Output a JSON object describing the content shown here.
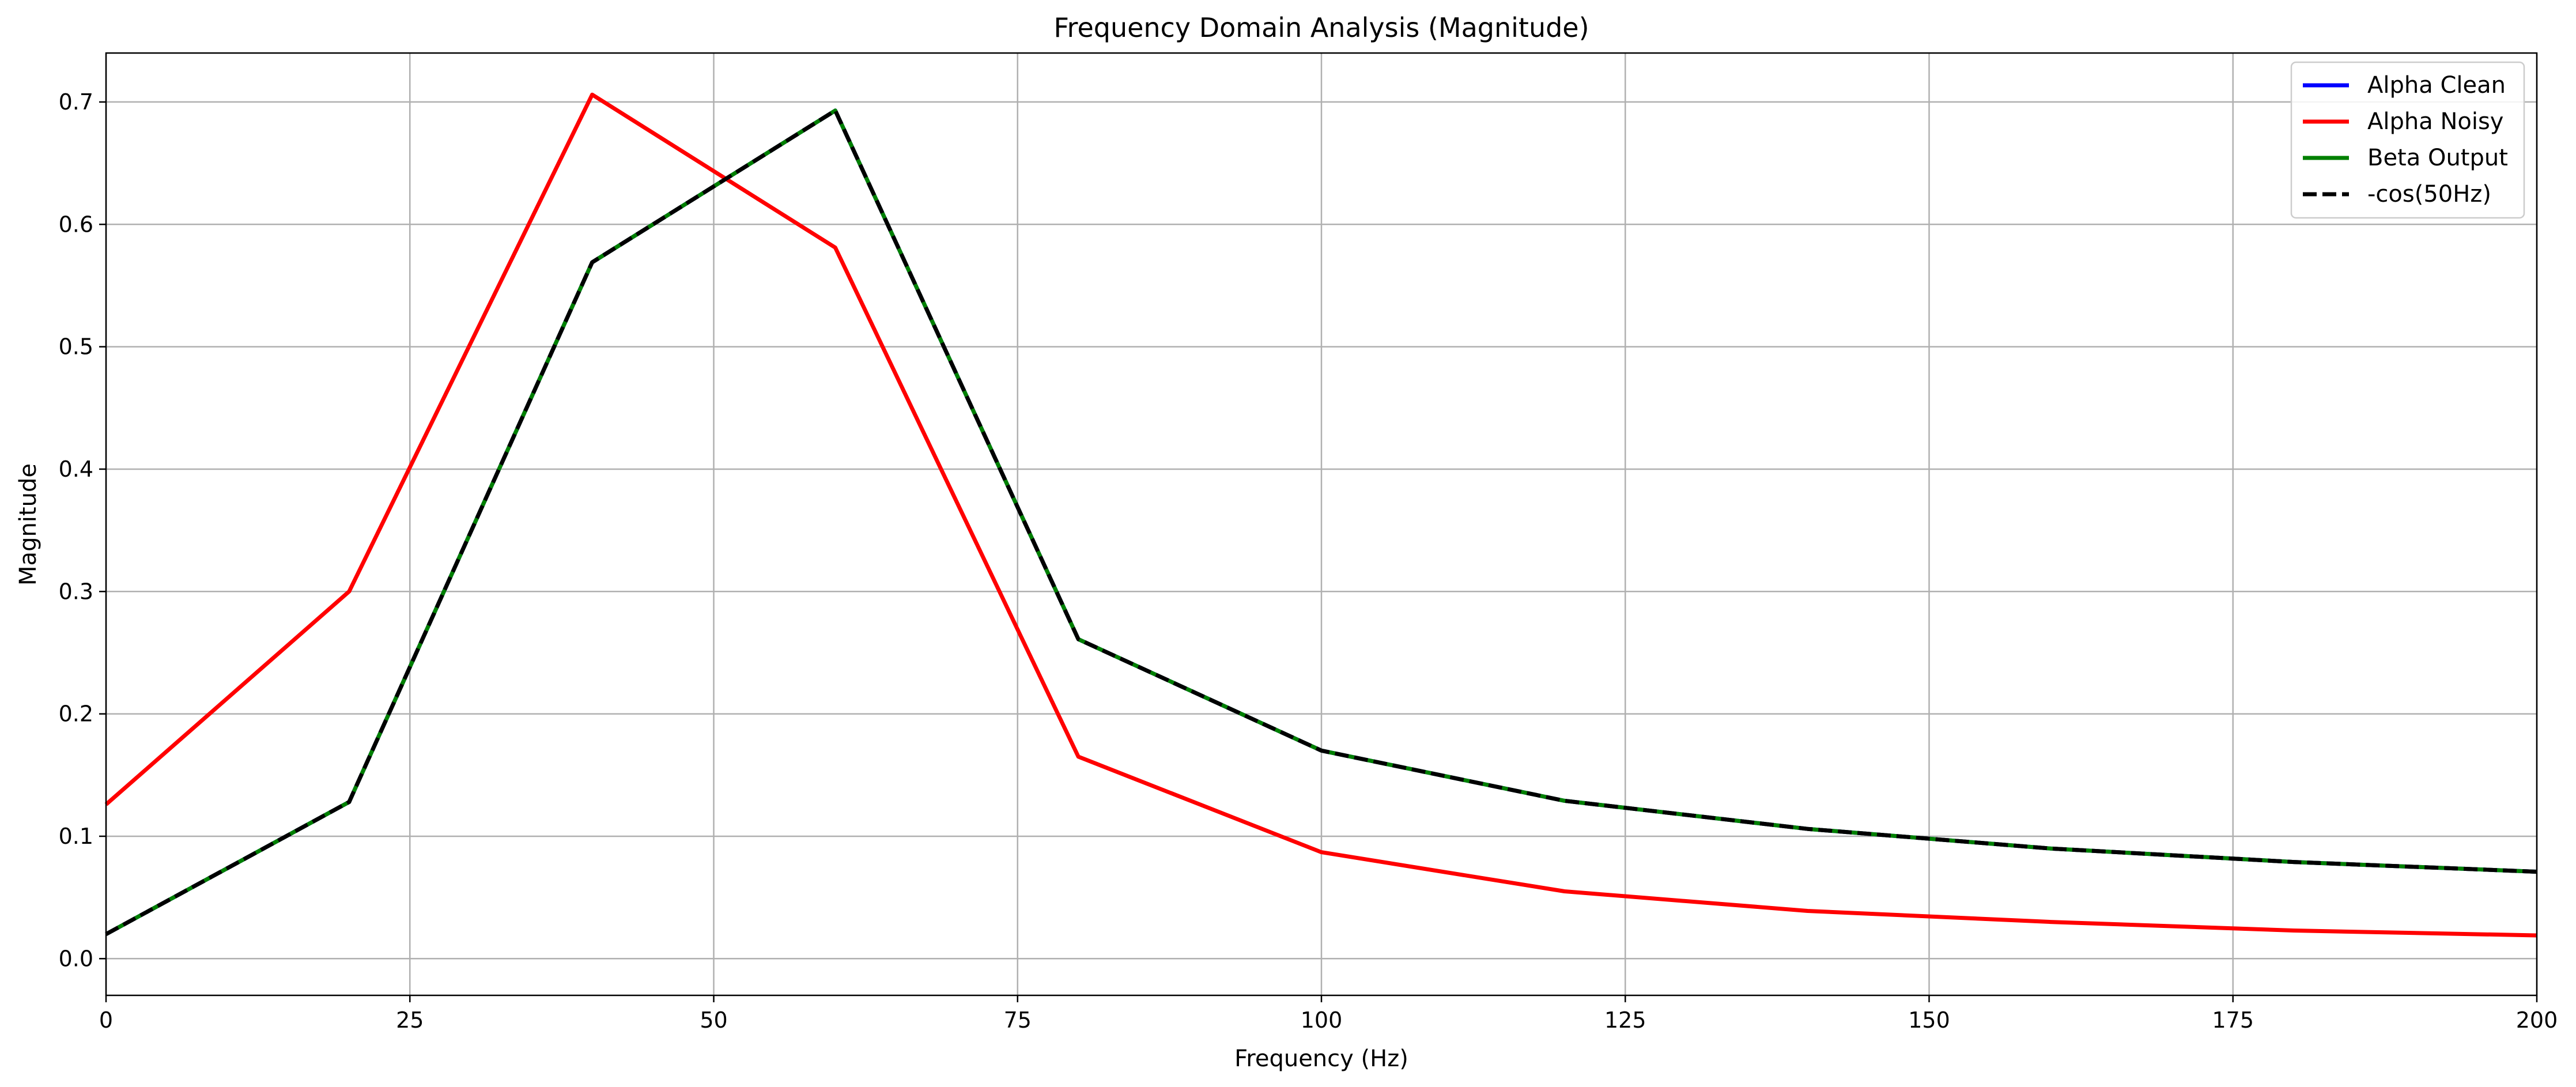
{
  "chart_data": {
    "type": "line",
    "title": "Frequency Domain Analysis (Magnitude)",
    "xlabel": "Frequency (Hz)",
    "ylabel": "Magnitude",
    "xlim": [
      0,
      200
    ],
    "ylim": [
      -0.03,
      0.74
    ],
    "xticks": [
      0,
      25,
      50,
      75,
      100,
      125,
      150,
      175,
      200
    ],
    "xtick_labels": [
      "0",
      "25",
      "50",
      "75",
      "100",
      "125",
      "150",
      "175",
      "200"
    ],
    "yticks": [
      0.0,
      0.1,
      0.2,
      0.3,
      0.4,
      0.5,
      0.6,
      0.7
    ],
    "ytick_labels": [
      "0.0",
      "0.1",
      "0.2",
      "0.3",
      "0.4",
      "0.5",
      "0.6",
      "0.7"
    ],
    "grid": true,
    "legend_position": "top-right",
    "x": [
      0,
      20,
      40,
      60,
      80,
      100,
      120,
      140,
      160,
      180,
      200
    ],
    "series": [
      {
        "name": "Alpha Clean",
        "color": "#0000ff",
        "dash": "solid",
        "values": [
          0.02,
          0.128,
          0.569,
          0.693,
          0.261,
          0.17,
          0.129,
          0.106,
          0.09,
          0.079,
          0.071
        ]
      },
      {
        "name": "Alpha Noisy",
        "color": "#ff0000",
        "dash": "solid",
        "values": [
          0.126,
          0.3,
          0.706,
          0.581,
          0.165,
          0.087,
          0.055,
          0.039,
          0.03,
          0.023,
          0.019
        ]
      },
      {
        "name": "Beta Output",
        "color": "#008000",
        "dash": "solid",
        "values": [
          0.02,
          0.128,
          0.569,
          0.693,
          0.261,
          0.17,
          0.129,
          0.106,
          0.09,
          0.079,
          0.071
        ]
      },
      {
        "name": "-cos(50Hz)",
        "color": "#000000",
        "dash": "dashed",
        "values": [
          0.02,
          0.128,
          0.569,
          0.693,
          0.261,
          0.17,
          0.129,
          0.106,
          0.09,
          0.079,
          0.071
        ]
      }
    ]
  }
}
